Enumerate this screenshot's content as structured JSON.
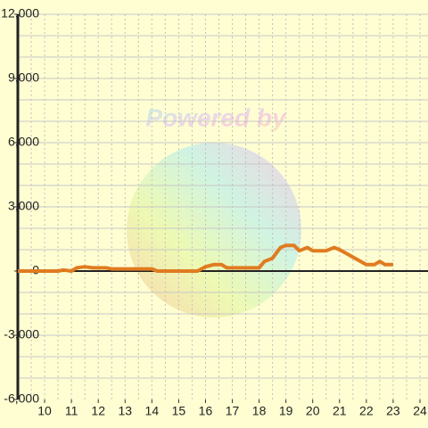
{
  "chart_data": {
    "type": "line",
    "watermark": "Powered by",
    "x": [
      9,
      10,
      10.5,
      10.7,
      11,
      11.2,
      11.5,
      11.8,
      12.3,
      12.5,
      13,
      13.5,
      14,
      14.2,
      15,
      15.7,
      16,
      16.3,
      16.6,
      16.8,
      17.5,
      18,
      18.2,
      18.5,
      18.8,
      19,
      19.3,
      19.5,
      19.8,
      20,
      20.5,
      20.8,
      21,
      21.5,
      22,
      22.3,
      22.5,
      22.7,
      23
    ],
    "series": [
      {
        "color": "#e07b20",
        "values": [
          0,
          0,
          0,
          50,
          0,
          150,
          200,
          150,
          150,
          100,
          100,
          100,
          100,
          0,
          0,
          0,
          200,
          300,
          300,
          150,
          150,
          150,
          450,
          600,
          1100,
          1200,
          1200,
          950,
          1100,
          950,
          950,
          1100,
          1000,
          650,
          300,
          300,
          450,
          300,
          300
        ]
      }
    ],
    "xlim": [
      9,
      24.3
    ],
    "xticks": [
      10,
      11,
      12,
      13,
      14,
      15,
      16,
      17,
      18,
      19,
      20,
      21,
      22,
      23,
      24
    ],
    "xgrid": [
      9.5,
      10,
      10.5,
      11,
      11.5,
      12,
      12.5,
      13,
      13.5,
      14,
      14.5,
      15,
      15.5,
      16,
      16.5,
      17,
      17.5,
      18,
      18.5,
      19,
      19.5,
      20,
      20.5,
      21,
      21.5,
      22,
      22.5,
      23,
      23.5,
      24
    ],
    "ylim": [
      -6000,
      12000
    ],
    "yticks": [
      {
        "value": -6000,
        "label": "-6,000"
      },
      {
        "value": -3000,
        "label": "-3,000"
      },
      0,
      {
        "value": 3000,
        "label": "3,000"
      },
      {
        "value": 6000,
        "label": "6,000"
      },
      {
        "value": 9000,
        "label": "9,000"
      },
      {
        "value": 12000,
        "label": "12,000"
      }
    ],
    "ygrid": [
      -5000,
      -4000,
      -3000,
      -2000,
      -1000,
      1000,
      2000,
      3000,
      4000,
      5000,
      6000,
      7000,
      8000,
      9000,
      10000,
      11000,
      12000
    ],
    "grid": true
  }
}
